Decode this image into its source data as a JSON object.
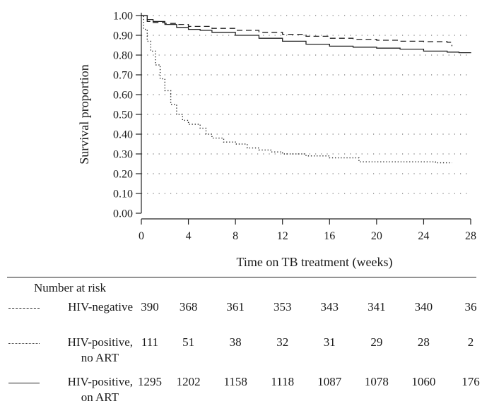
{
  "chart_data": {
    "type": "line",
    "title": "",
    "xlabel": "Time on TB treatment (weeks)",
    "ylabel": "Survival proportion",
    "xlim": [
      0,
      28
    ],
    "ylim": [
      0,
      1
    ],
    "x_ticks": [
      "0",
      "4",
      "8",
      "12",
      "16",
      "20",
      "24",
      "28"
    ],
    "y_ticks": [
      "0.00",
      "0.10",
      "0.20",
      "0.30",
      "0.40",
      "0.50",
      "0.60",
      "0.70",
      "0.80",
      "0.90",
      "1.00"
    ],
    "grid": "horizontal-dotted",
    "series": [
      {
        "name": "HIV-negative",
        "style": "dashed",
        "x": [
          0,
          0.5,
          1,
          2,
          3,
          4,
          6,
          8,
          10,
          12,
          14,
          16,
          18,
          20,
          22,
          24,
          26,
          26.4,
          26.4
        ],
        "y": [
          1.0,
          0.97,
          0.965,
          0.96,
          0.955,
          0.945,
          0.935,
          0.925,
          0.915,
          0.905,
          0.895,
          0.885,
          0.88,
          0.875,
          0.87,
          0.868,
          0.865,
          0.865,
          0.845
        ]
      },
      {
        "name": "HIV-positive, no ART",
        "style": "dotted",
        "x": [
          0,
          0.2,
          0.5,
          0.8,
          1.2,
          1.6,
          2,
          2.5,
          3,
          3.5,
          4,
          5,
          5.5,
          6,
          7,
          8,
          9,
          10,
          11,
          12,
          14,
          16,
          18,
          18.5,
          20,
          22,
          24,
          25,
          26.4
        ],
        "y": [
          1.0,
          0.93,
          0.87,
          0.82,
          0.75,
          0.68,
          0.62,
          0.55,
          0.5,
          0.47,
          0.45,
          0.43,
          0.4,
          0.38,
          0.36,
          0.35,
          0.33,
          0.32,
          0.31,
          0.3,
          0.29,
          0.28,
          0.28,
          0.26,
          0.26,
          0.26,
          0.26,
          0.255,
          0.255
        ]
      },
      {
        "name": "HIV-positive, on ART",
        "style": "solid",
        "x": [
          0,
          0.5,
          1,
          2,
          3,
          4,
          5,
          6,
          8,
          10,
          12,
          14,
          16,
          18,
          20,
          22,
          24,
          26,
          27,
          28
        ],
        "y": [
          1.0,
          0.98,
          0.97,
          0.955,
          0.94,
          0.93,
          0.925,
          0.915,
          0.9,
          0.885,
          0.87,
          0.855,
          0.845,
          0.84,
          0.835,
          0.83,
          0.82,
          0.815,
          0.812,
          0.81
        ]
      }
    ]
  },
  "risk_table": {
    "title": "Number at risk",
    "rows": [
      {
        "label_lines": [
          "HIV-negative"
        ],
        "style": "dashed",
        "counts": [
          "390",
          "368",
          "361",
          "353",
          "343",
          "341",
          "340",
          "36"
        ]
      },
      {
        "label_lines": [
          "HIV-positive,",
          "no ART"
        ],
        "style": "dotted",
        "counts": [
          "111",
          "51",
          "38",
          "32",
          "31",
          "29",
          "28",
          "2"
        ]
      },
      {
        "label_lines": [
          "HIV-positive,",
          "on ART"
        ],
        "style": "solid",
        "counts": [
          "1295",
          "1202",
          "1158",
          "1118",
          "1087",
          "1078",
          "1060",
          "176"
        ]
      }
    ]
  }
}
